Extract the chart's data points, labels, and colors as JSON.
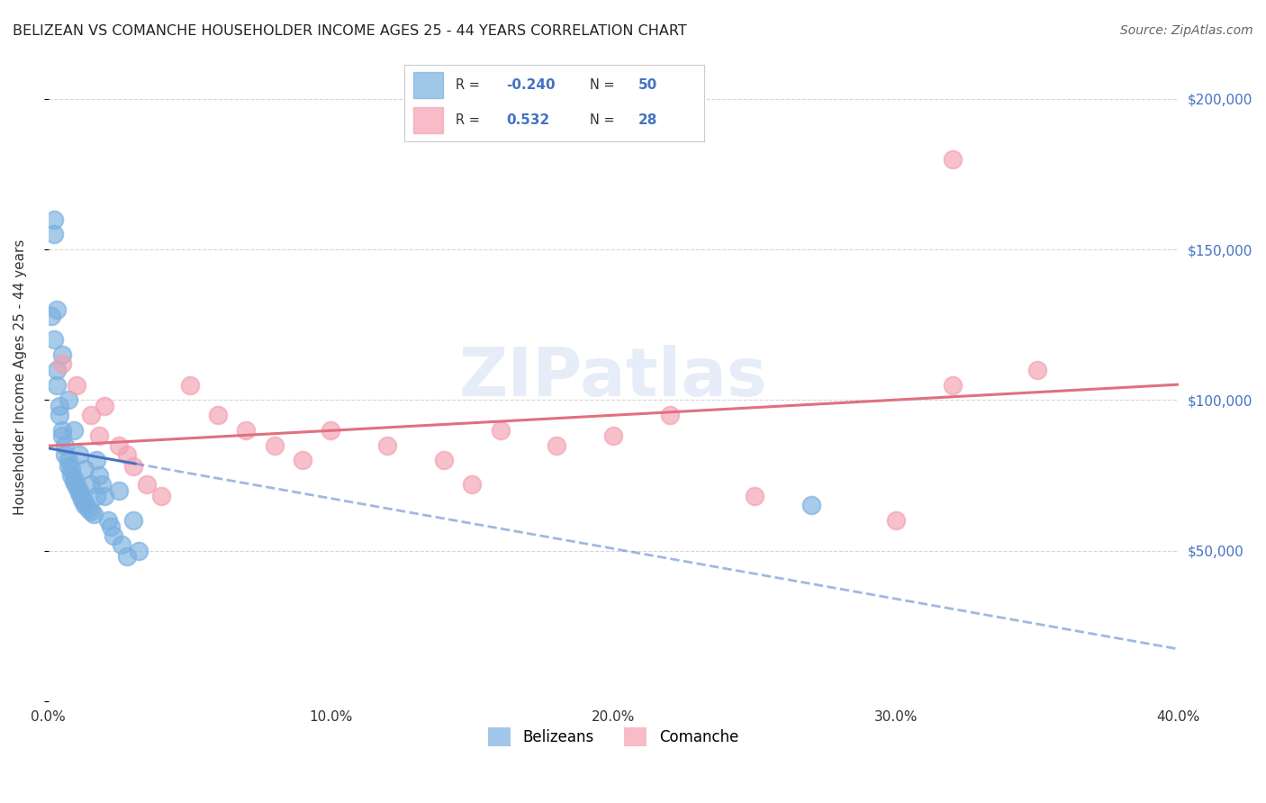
{
  "title": "BELIZEAN VS COMANCHE HOUSEHOLDER INCOME AGES 25 - 44 YEARS CORRELATION CHART",
  "source": "Source: ZipAtlas.com",
  "ylabel": "Householder Income Ages 25 - 44 years",
  "xlim": [
    0.0,
    0.4
  ],
  "ylim": [
    0,
    215000
  ],
  "yticks": [
    0,
    50000,
    100000,
    150000,
    200000
  ],
  "ytick_labels": [
    "",
    "$50,000",
    "$100,000",
    "$150,000",
    "$200,000"
  ],
  "xticks": [
    0.0,
    0.1,
    0.2,
    0.3,
    0.4
  ],
  "xtick_labels": [
    "0.0%",
    "10.0%",
    "20.0%",
    "30.0%",
    "40.0%"
  ],
  "belizean_color": "#7ab0e0",
  "comanche_color": "#f4a0b0",
  "belizean_line_color": "#4472c4",
  "comanche_line_color": "#e07080",
  "belizean_R": -0.24,
  "belizean_N": 50,
  "comanche_R": 0.532,
  "comanche_N": 28,
  "background_color": "#ffffff",
  "belizean_x": [
    0.001,
    0.002,
    0.002,
    0.003,
    0.003,
    0.004,
    0.004,
    0.005,
    0.005,
    0.006,
    0.006,
    0.007,
    0.007,
    0.008,
    0.008,
    0.009,
    0.009,
    0.01,
    0.01,
    0.011,
    0.011,
    0.012,
    0.012,
    0.013,
    0.013,
    0.014,
    0.015,
    0.016,
    0.017,
    0.018,
    0.019,
    0.02,
    0.021,
    0.022,
    0.023,
    0.025,
    0.026,
    0.028,
    0.03,
    0.032,
    0.002,
    0.003,
    0.005,
    0.007,
    0.009,
    0.011,
    0.013,
    0.015,
    0.017,
    0.27
  ],
  "belizean_y": [
    128000,
    120000,
    155000,
    110000,
    105000,
    98000,
    95000,
    90000,
    88000,
    85000,
    82000,
    80000,
    78000,
    77000,
    75000,
    74000,
    73000,
    72000,
    71000,
    70000,
    69000,
    68000,
    67000,
    66000,
    65000,
    64000,
    63000,
    62000,
    80000,
    75000,
    72000,
    68000,
    60000,
    58000,
    55000,
    70000,
    52000,
    48000,
    60000,
    50000,
    160000,
    130000,
    115000,
    100000,
    90000,
    82000,
    77000,
    72000,
    68000,
    65000
  ],
  "comanche_x": [
    0.005,
    0.01,
    0.015,
    0.018,
    0.02,
    0.025,
    0.028,
    0.03,
    0.035,
    0.04,
    0.05,
    0.06,
    0.07,
    0.08,
    0.09,
    0.1,
    0.12,
    0.14,
    0.15,
    0.16,
    0.18,
    0.2,
    0.22,
    0.25,
    0.3,
    0.32,
    0.35,
    0.32
  ],
  "comanche_y": [
    112000,
    105000,
    95000,
    88000,
    98000,
    85000,
    82000,
    78000,
    72000,
    68000,
    105000,
    95000,
    90000,
    85000,
    80000,
    90000,
    85000,
    80000,
    72000,
    90000,
    85000,
    88000,
    95000,
    68000,
    60000,
    105000,
    110000,
    180000
  ]
}
